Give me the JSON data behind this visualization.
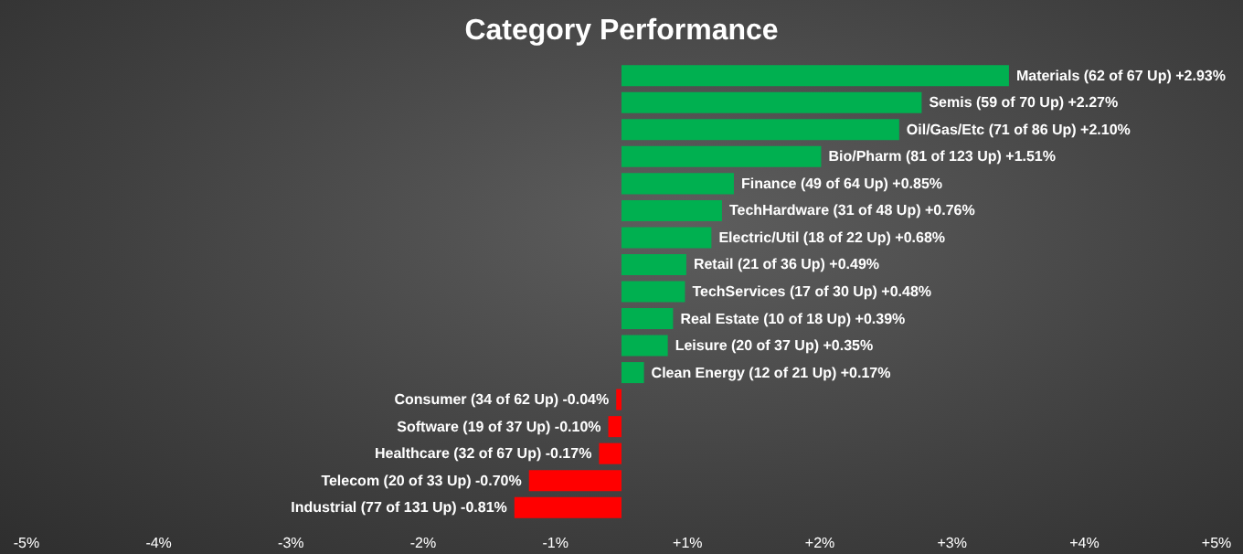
{
  "chart_data": {
    "type": "bar",
    "orientation": "horizontal",
    "title": "Category Performance",
    "categories": [
      "Materials (62 of 67 Up) +2.93%",
      "Semis (59 of 70 Up) +2.27%",
      "Oil/Gas/Etc (71 of 86 Up) +2.10%",
      "Bio/Pharm (81 of 123 Up) +1.51%",
      "Finance (49 of 64 Up) +0.85%",
      "TechHardware (31 of 48 Up) +0.76%",
      "Electric/Util (18 of 22 Up) +0.68%",
      "Retail (21 of 36 Up) +0.49%",
      "TechServices (17 of 30 Up) +0.48%",
      "Real Estate (10 of 18 Up) +0.39%",
      "Leisure (20 of 37 Up) +0.35%",
      "Clean Energy (12 of 21 Up) +0.17%",
      "Consumer (34 of 62 Up) -0.04%",
      "Software (19 of 37 Up) -0.10%",
      "Healthcare (32 of 67 Up) -0.17%",
      "Telecom (20 of 33 Up) -0.70%",
      "Industrial (77 of 131 Up) -0.81%"
    ],
    "values": [
      2.93,
      2.27,
      2.1,
      1.51,
      0.85,
      0.76,
      0.68,
      0.49,
      0.48,
      0.39,
      0.35,
      0.17,
      -0.04,
      -0.1,
      -0.17,
      -0.7,
      -0.81
    ],
    "colors": [
      "#00b050",
      "#00b050",
      "#00b050",
      "#00b050",
      "#00b050",
      "#00b050",
      "#00b050",
      "#00b050",
      "#00b050",
      "#00b050",
      "#00b050",
      "#00b050",
      "#ff0000",
      "#ff0000",
      "#ff0000",
      "#ff0000",
      "#ff0000"
    ],
    "xlim": [
      -4.7,
      4.7
    ],
    "xticks": [
      {
        "value": -4.5,
        "label": "-5%"
      },
      {
        "value": -3.5,
        "label": "-4%"
      },
      {
        "value": -2.5,
        "label": "-3%"
      },
      {
        "value": -1.5,
        "label": "-2%"
      },
      {
        "value": -0.5,
        "label": "-1%"
      },
      {
        "value": 0.5,
        "label": "+1%"
      },
      {
        "value": 1.5,
        "label": "+2%"
      },
      {
        "value": 2.5,
        "label": "+3%"
      },
      {
        "value": 3.5,
        "label": "+4%"
      },
      {
        "value": 4.5,
        "label": "+5%"
      }
    ],
    "tick_labels": "x",
    "grid": false
  }
}
